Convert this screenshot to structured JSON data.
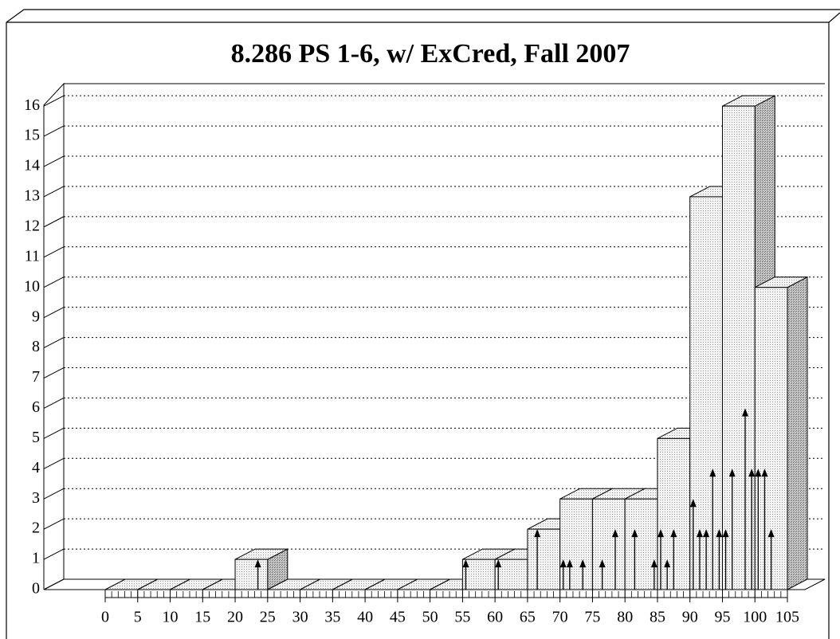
{
  "chart_data": {
    "type": "histogram",
    "title": "8.286 PS 1-6, w/ ExCred, Fall 2007",
    "bins": [
      0,
      5,
      10,
      15,
      20,
      25,
      30,
      35,
      40,
      45,
      50,
      55,
      60,
      65,
      70,
      75,
      80,
      85,
      90,
      95,
      100,
      105
    ],
    "values": [
      0,
      0,
      0,
      0,
      1,
      0,
      0,
      0,
      0,
      0,
      0,
      1,
      1,
      2,
      3,
      3,
      3,
      5,
      13,
      16,
      10
    ],
    "color": "#eeeeee",
    "scores": {
      "x": [
        23.5,
        55.5,
        60.5,
        66.5,
        70.5,
        71.5,
        73.5,
        76.5,
        78.5,
        81.5,
        84.5,
        85.5,
        86.5,
        87.5,
        90.5,
        91.5,
        92.5,
        93.5,
        94.5,
        95.5,
        96.5,
        98.5,
        99.5,
        100.5,
        101.5,
        102.5
      ],
      "counts": [
        1,
        1,
        1,
        2,
        1,
        1,
        1,
        1,
        2,
        2,
        1,
        2,
        1,
        2,
        3,
        2,
        2,
        4,
        2,
        2,
        4,
        6,
        4,
        4,
        4,
        2
      ]
    },
    "xlim": [
      0,
      105
    ],
    "xticks": [
      0,
      5,
      10,
      15,
      20,
      25,
      30,
      35,
      40,
      45,
      50,
      55,
      60,
      65,
      70,
      75,
      80,
      85,
      90,
      95,
      100,
      105
    ],
    "ylim": [
      0,
      16.4
    ],
    "yticks": [
      0,
      1,
      2,
      3,
      4,
      5,
      6,
      7,
      8,
      9,
      10,
      11,
      12,
      13,
      14,
      15,
      16
    ],
    "grid": true
  }
}
